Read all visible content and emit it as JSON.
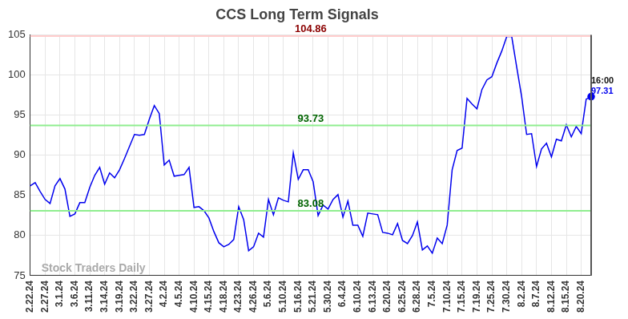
{
  "chart_data": {
    "type": "line",
    "title": "CCS Long Term Signals",
    "categories": [
      "2.22.24",
      null,
      null,
      "2.27.24",
      null,
      null,
      "3.1.24",
      null,
      null,
      "3.6.24",
      null,
      null,
      "3.11.24",
      null,
      null,
      "3.14.24",
      null,
      null,
      "3.19.24",
      null,
      null,
      "3.22.24",
      null,
      null,
      "3.27.24",
      null,
      null,
      "4.2.24",
      null,
      null,
      "4.5.24",
      null,
      null,
      "4.10.24",
      null,
      null,
      "4.15.24",
      null,
      null,
      "4.18.24",
      null,
      null,
      "4.23.24",
      null,
      null,
      "4.26.24",
      null,
      null,
      "5.6.24",
      null,
      null,
      "5.10.24",
      null,
      null,
      "5.16.24",
      null,
      null,
      "5.21.24",
      null,
      null,
      "5.30.24",
      null,
      null,
      "6.4.24",
      null,
      null,
      "6.10.24",
      null,
      null,
      "6.13.24",
      null,
      null,
      "6.20.24",
      null,
      null,
      "6.25.24",
      null,
      null,
      "6.28.24",
      null,
      null,
      "7.5.24",
      null,
      null,
      "7.10.24",
      null,
      null,
      "7.15.24",
      null,
      null,
      "7.19.24",
      null,
      null,
      "7.25.24",
      null,
      null,
      "7.30.24",
      null,
      null,
      "8.2.24",
      null,
      null,
      "8.7.24",
      null,
      null,
      "8.12.24",
      null,
      null,
      "8.15.24",
      null,
      null,
      "8.20.24",
      null,
      null
    ],
    "values": [
      86.2,
      86.6,
      85.5,
      84.5,
      84.0,
      86.2,
      87.1,
      85.8,
      82.4,
      82.7,
      84.1,
      84.1,
      86.0,
      87.5,
      88.5,
      86.4,
      87.8,
      87.2,
      88.2,
      89.6,
      91.1,
      92.6,
      92.5,
      92.6,
      94.5,
      96.2,
      95.2,
      88.8,
      89.4,
      87.4,
      87.5,
      87.6,
      88.5,
      83.5,
      83.6,
      83.1,
      82.2,
      80.5,
      79.1,
      78.6,
      78.9,
      79.5,
      83.6,
      82.0,
      78.1,
      78.6,
      80.3,
      79.8,
      84.5,
      82.6,
      84.7,
      84.4,
      84.2,
      90.3,
      87.0,
      88.2,
      88.2,
      86.7,
      82.5,
      83.8,
      83.3,
      84.5,
      85.1,
      82.3,
      84.3,
      81.3,
      81.3,
      79.9,
      82.8,
      82.7,
      82.6,
      80.4,
      80.3,
      80.1,
      81.5,
      79.4,
      79.0,
      80.0,
      81.7,
      78.2,
      78.7,
      77.8,
      79.7,
      79.0,
      81.3,
      88.2,
      90.6,
      90.9,
      97.1,
      96.4,
      95.8,
      98.2,
      99.4,
      99.8,
      101.5,
      103.0,
      104.8,
      104.8,
      101.0,
      97.3,
      92.6,
      92.7,
      88.6,
      90.8,
      91.5,
      89.8,
      92.0,
      91.8,
      93.8,
      92.3,
      93.6,
      92.7,
      97.0,
      97.31
    ],
    "color": "#0000ee",
    "ylim": [
      75,
      105
    ],
    "yticks": [
      75,
      80,
      85,
      90,
      95,
      100,
      105
    ],
    "grid": true,
    "annotations": [
      {
        "y": 104.86,
        "color": "#8b0000",
        "line_color": "#ffcccc"
      },
      {
        "y": 93.73,
        "color": "#006400",
        "line_color": "#90ee90"
      },
      {
        "y": 83.08,
        "color": "#006400",
        "line_color": "#90ee90"
      }
    ],
    "last_label": "16:00",
    "watermark": "Stock Traders Daily"
  }
}
